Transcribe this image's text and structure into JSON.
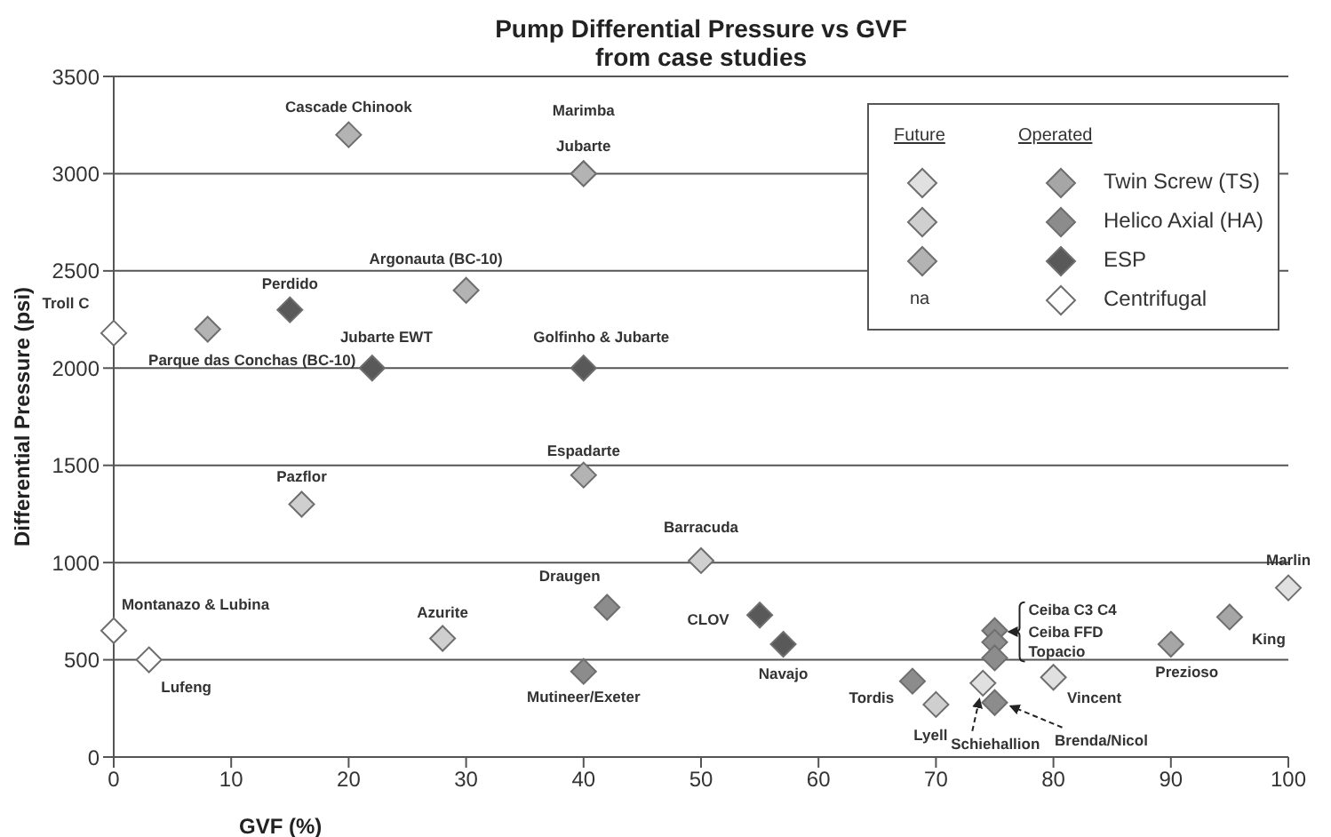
{
  "chart_data": {
    "type": "scatter",
    "title": "Pump Differential Pressure vs GVF",
    "subtitle": "from case studies",
    "xlabel": "GVF (%)",
    "ylabel": "Differential Pressure (psi)",
    "xlim": [
      0,
      100
    ],
    "xticks": [
      0,
      10,
      20,
      30,
      40,
      50,
      60,
      70,
      80,
      90,
      100
    ],
    "ylim": [
      0,
      3500
    ],
    "yticks": [
      0,
      500,
      1000,
      1500,
      2000,
      2500,
      3000,
      3500
    ],
    "grid": "y",
    "legend": "top right",
    "marker": "diamond",
    "annotations": [
      "Operated",
      "Future",
      "na"
    ],
    "series": [
      {
        "name": "Twin Screw (TS)",
        "color": "#a6a6a6",
        "x": [
          90,
          95
        ],
        "values": [
          580,
          720
        ],
        "value_labels": [
          "Prezioso",
          "King"
        ]
      },
      {
        "name": "Helico Axial (HA)",
        "color": "#8c8c8c",
        "x": [
          42,
          40,
          75,
          75,
          75,
          68,
          75
        ],
        "values": [
          770,
          440,
          650,
          590,
          510,
          390,
          280
        ],
        "value_labels": [
          "Draugen",
          "Mutineer/Exeter",
          "Ceiba C3 C4",
          "Ceiba FFD",
          "Topacio",
          "Tordis",
          "Brenda/Nicol"
        ]
      },
      {
        "name": "ESP",
        "color": "#595959",
        "x": [
          15,
          22,
          40,
          55,
          57
        ],
        "values": [
          2300,
          2000,
          2000,
          730,
          580
        ],
        "value_labels": [
          "Perdido",
          "Jubarte EWT",
          "Golfinho & Jubarte",
          "CLOV",
          "Navajo"
        ]
      },
      {
        "name": "Centrifugal",
        "color": "#ffffff",
        "x": [
          0,
          0,
          3
        ],
        "values": [
          2180,
          650,
          500
        ],
        "value_labels": [
          "Troll C",
          "Montanazo & Lubina",
          "Lufeng"
        ]
      },
      {
        "color": "#e0e0e0",
        "x": [
          74,
          80,
          100
        ],
        "values": [
          380,
          410,
          870
        ],
        "value_labels": [
          "Schiehallion",
          "Vincent",
          "Marlin"
        ]
      },
      {
        "color": "#cfcfcf",
        "x": [
          16,
          28,
          50,
          70
        ],
        "values": [
          1300,
          610,
          1010,
          270
        ],
        "value_labels": [
          "Pazflor",
          "Azurite",
          "Barracuda",
          "Lyell"
        ]
      },
      {
        "color": "#b3b3b3",
        "x": [
          20,
          40,
          40,
          30,
          8,
          40
        ],
        "values": [
          3200,
          3000,
          3000,
          2400,
          2200,
          1450
        ],
        "value_labels": [
          "Cascade Chinook",
          "Marimba",
          "Jubarte",
          "Argonauta (BC-10)",
          "Parque das Conchas (BC-10)",
          "Espadarte"
        ]
      }
    ]
  }
}
